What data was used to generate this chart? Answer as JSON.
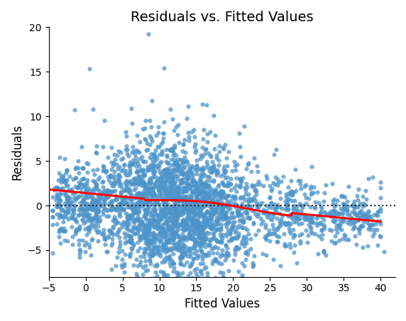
{
  "title": "Residuals vs. Fitted Values",
  "xlabel": "Fitted Values",
  "ylabel": "Residuals",
  "xlim": [
    -5,
    42
  ],
  "ylim": [
    -8,
    20
  ],
  "xticks": [
    -5,
    0,
    5,
    10,
    15,
    20,
    25,
    30,
    35,
    40
  ],
  "yticks": [
    -5,
    0,
    5,
    10,
    15,
    20
  ],
  "dot_color": "#4d94c9",
  "dot_size": 20,
  "dot_alpha": 0.75,
  "hline_color": "#222222",
  "hline_style": "dotted",
  "hline_lw": 1.5,
  "smooth_color": "red",
  "smooth_lw": 2.2,
  "random_seed": 42,
  "n_points": 3000,
  "figsize": [
    5.72,
    4.53
  ],
  "dpi": 100
}
